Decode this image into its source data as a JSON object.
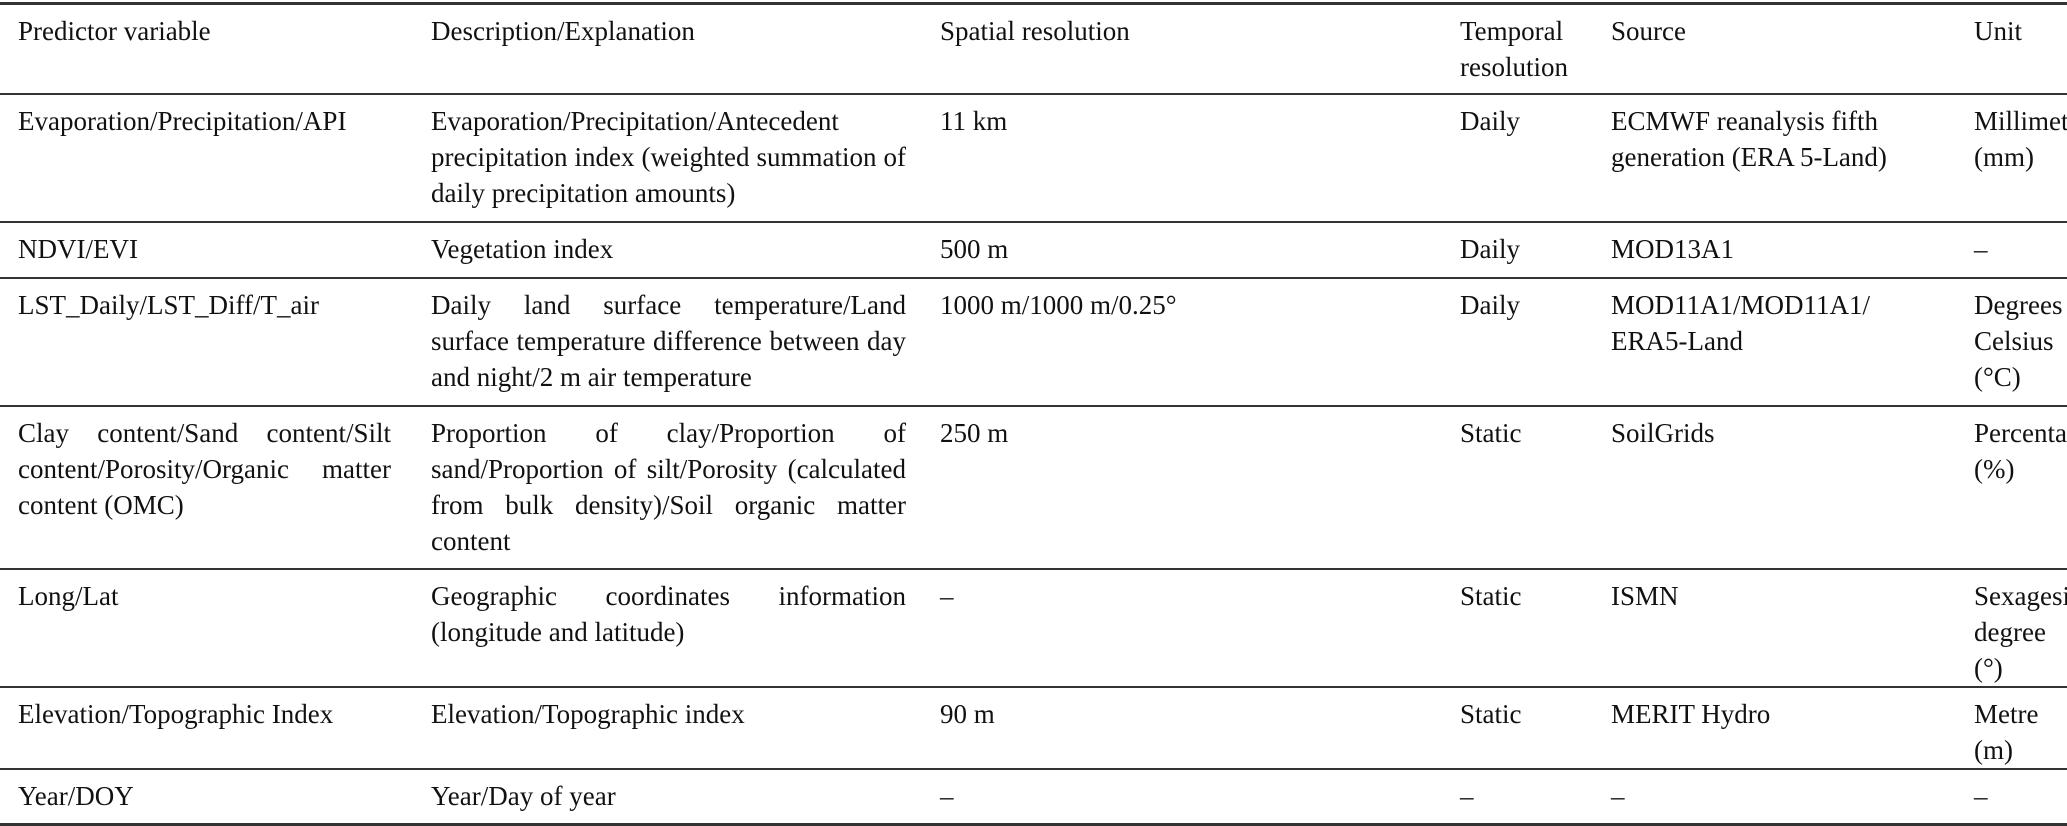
{
  "table": {
    "headers": [
      "Predictor variable",
      "Description/Explanation",
      "Spatial resolution",
      "Temporal resolution",
      "Source",
      "Unit"
    ],
    "rows": [
      [
        "Evaporation/Precipitation/API",
        "Evaporation/Precipitation/Antecedent precipitation index (weighted summation of daily precipitation amounts)",
        "11 km",
        "Daily",
        "ECMWF reanalysis fifth generation (ERA 5-Land)",
        "Millimetre (mm)"
      ],
      [
        "NDVI/EVI",
        "Vegetation index",
        "500 m",
        "Daily",
        "MOD13A1",
        "–"
      ],
      [
        "LST_Daily/LST_Diff/T_air",
        "Daily land surface temperature/Land surface temperature difference between day and night/2 m air temperature",
        "1000 m/1000 m/0.25°",
        "Daily",
        "MOD11A1/MOD11A1/ ERA5-Land",
        "Degrees Celsius (°C)"
      ],
      [
        "Clay content/Sand content/Silt content/Porosity/Organic matter content (OMC)",
        "Proportion of clay/Proportion of sand/Proportion of silt/Porosity (calculated from bulk density)/Soil organic matter content",
        "250 m",
        "Static",
        "SoilGrids",
        "Percentage (%)"
      ],
      [
        "Long/Lat",
        "Geographic coordinates information (longitude and latitude)",
        "–",
        "Static",
        "ISMN",
        "Sexagesimal degree (°)"
      ],
      [
        "Elevation/Topographic Index",
        "Elevation/Topographic index",
        "90 m",
        "Static",
        "MERIT Hydro",
        "Metre (m)"
      ],
      [
        "Year/DOY",
        "Year/Day of year",
        "–",
        "–",
        "–",
        "–"
      ]
    ]
  }
}
